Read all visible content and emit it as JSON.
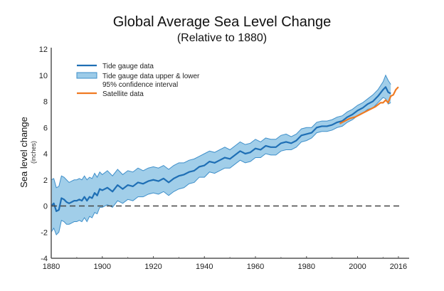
{
  "chart_data": {
    "type": "line",
    "title": "Global Average Sea Level Change",
    "subtitle": "(Relative to 1880)",
    "ylabel": "Sea level change",
    "ylabel_units": "(inches)",
    "xlabel": "",
    "xlim": [
      1880,
      2020
    ],
    "ylim": [
      -4,
      12
    ],
    "x_ticks": [
      1880,
      1900,
      1920,
      1940,
      1960,
      1980,
      2000,
      2016
    ],
    "y_ticks": [
      -4,
      -2,
      0,
      2,
      4,
      6,
      8,
      10,
      12
    ],
    "reference_line": {
      "y": 0,
      "style": "dashed"
    },
    "legend": {
      "position": "top-left",
      "entries": [
        {
          "label": "Tide gauge data",
          "kind": "line",
          "color": "#1f6fb5"
        },
        {
          "label": "Tide gauge data upper & lower",
          "label2": "95% confidence interval",
          "kind": "band",
          "color": "#9ccbe8"
        },
        {
          "label": "Satellite data",
          "kind": "line",
          "color": "#ef7a22"
        }
      ]
    },
    "series": [
      {
        "name": "Tide gauge data",
        "color": "#1f6fb5",
        "x": [
          1880,
          1881,
          1882,
          1883,
          1884,
          1885,
          1886,
          1887,
          1888,
          1889,
          1890,
          1891,
          1892,
          1893,
          1894,
          1895,
          1896,
          1897,
          1898,
          1899,
          1900,
          1902,
          1904,
          1906,
          1908,
          1910,
          1912,
          1914,
          1916,
          1918,
          1920,
          1922,
          1924,
          1926,
          1928,
          1930,
          1932,
          1934,
          1936,
          1938,
          1940,
          1942,
          1944,
          1946,
          1948,
          1950,
          1952,
          1954,
          1956,
          1958,
          1960,
          1962,
          1964,
          1966,
          1968,
          1970,
          1972,
          1974,
          1976,
          1978,
          1980,
          1982,
          1984,
          1986,
          1988,
          1990,
          1992,
          1994,
          1996,
          1998,
          2000,
          2002,
          2004,
          2006,
          2008,
          2010,
          2011,
          2012,
          2013
        ],
        "values": [
          0.0,
          0.2,
          -0.4,
          -0.3,
          0.6,
          0.5,
          0.3,
          0.2,
          0.3,
          0.4,
          0.4,
          0.5,
          0.4,
          0.7,
          0.4,
          0.7,
          0.6,
          1.0,
          0.8,
          1.3,
          1.2,
          1.4,
          1.1,
          1.6,
          1.3,
          1.6,
          1.5,
          1.8,
          1.7,
          1.9,
          2.0,
          1.9,
          2.1,
          1.8,
          2.1,
          2.3,
          2.4,
          2.6,
          2.7,
          3.0,
          3.1,
          3.4,
          3.3,
          3.5,
          3.7,
          3.6,
          3.9,
          4.2,
          4.0,
          4.1,
          4.4,
          4.3,
          4.6,
          4.5,
          4.5,
          4.8,
          4.9,
          4.8,
          5.0,
          5.4,
          5.5,
          5.6,
          6.0,
          6.1,
          6.1,
          6.2,
          6.4,
          6.5,
          6.8,
          7.0,
          7.3,
          7.5,
          7.8,
          8.0,
          8.4,
          8.9,
          9.1,
          8.7,
          8.6
        ]
      },
      {
        "name": "Tide gauge data upper & lower 95% confidence interval",
        "color": "#9ccbe8",
        "x": [
          1880,
          1881,
          1882,
          1883,
          1884,
          1885,
          1886,
          1887,
          1888,
          1889,
          1890,
          1891,
          1892,
          1893,
          1894,
          1895,
          1896,
          1897,
          1898,
          1899,
          1900,
          1902,
          1904,
          1906,
          1908,
          1910,
          1912,
          1914,
          1916,
          1918,
          1920,
          1922,
          1924,
          1926,
          1928,
          1930,
          1932,
          1934,
          1936,
          1938,
          1940,
          1942,
          1944,
          1946,
          1948,
          1950,
          1952,
          1954,
          1956,
          1958,
          1960,
          1962,
          1964,
          1966,
          1968,
          1970,
          1972,
          1974,
          1976,
          1978,
          1980,
          1982,
          1984,
          1986,
          1988,
          1990,
          1992,
          1994,
          1996,
          1998,
          2000,
          2002,
          2004,
          2006,
          2008,
          2010,
          2011,
          2012,
          2013
        ],
        "upper": [
          2.0,
          2.1,
          1.4,
          1.5,
          2.3,
          2.2,
          2.0,
          1.8,
          1.9,
          2.0,
          2.0,
          2.1,
          2.0,
          2.3,
          2.0,
          2.2,
          2.1,
          2.5,
          2.2,
          2.6,
          2.4,
          2.7,
          2.3,
          2.8,
          2.4,
          2.7,
          2.6,
          2.9,
          2.7,
          2.9,
          3.0,
          2.9,
          3.1,
          2.8,
          3.1,
          3.3,
          3.3,
          3.5,
          3.6,
          3.8,
          4.0,
          4.2,
          4.1,
          4.3,
          4.5,
          4.3,
          4.6,
          4.9,
          4.7,
          4.8,
          5.1,
          4.9,
          5.2,
          5.1,
          5.1,
          5.4,
          5.5,
          5.3,
          5.5,
          5.9,
          6.0,
          6.0,
          6.4,
          6.5,
          6.5,
          6.6,
          6.8,
          6.9,
          7.2,
          7.4,
          7.7,
          7.9,
          8.2,
          8.5,
          8.9,
          9.5,
          10.0,
          9.6,
          9.3
        ],
        "lower": [
          -2.0,
          -1.7,
          -2.2,
          -2.0,
          -1.1,
          -1.2,
          -1.4,
          -1.4,
          -1.3,
          -1.2,
          -1.2,
          -1.1,
          -1.2,
          -0.9,
          -1.2,
          -0.8,
          -0.9,
          -0.5,
          -0.6,
          -0.1,
          -0.1,
          0.1,
          -0.1,
          0.4,
          0.2,
          0.5,
          0.4,
          0.7,
          0.7,
          0.9,
          1.0,
          0.9,
          1.1,
          0.8,
          1.1,
          1.3,
          1.4,
          1.7,
          1.8,
          2.2,
          2.2,
          2.6,
          2.5,
          2.7,
          2.9,
          2.9,
          3.2,
          3.5,
          3.3,
          3.4,
          3.7,
          3.7,
          4.0,
          3.9,
          3.9,
          4.2,
          4.3,
          4.3,
          4.5,
          4.9,
          5.0,
          5.2,
          5.6,
          5.7,
          5.7,
          5.8,
          6.0,
          6.1,
          6.4,
          6.6,
          6.9,
          7.1,
          7.4,
          7.5,
          7.9,
          8.3,
          8.2,
          7.8,
          7.9
        ]
      },
      {
        "name": "Satellite data",
        "color": "#ef7a22",
        "x": [
          1993,
          1995,
          1997,
          1999,
          2001,
          2003,
          2005,
          2007,
          2009,
          2010,
          2011,
          2012,
          2013,
          2014,
          2015,
          2016
        ],
        "values": [
          6.3,
          6.5,
          6.7,
          6.8,
          7.0,
          7.2,
          7.4,
          7.6,
          7.9,
          7.9,
          8.1,
          7.9,
          8.4,
          8.5,
          8.9,
          9.1
        ]
      }
    ]
  }
}
